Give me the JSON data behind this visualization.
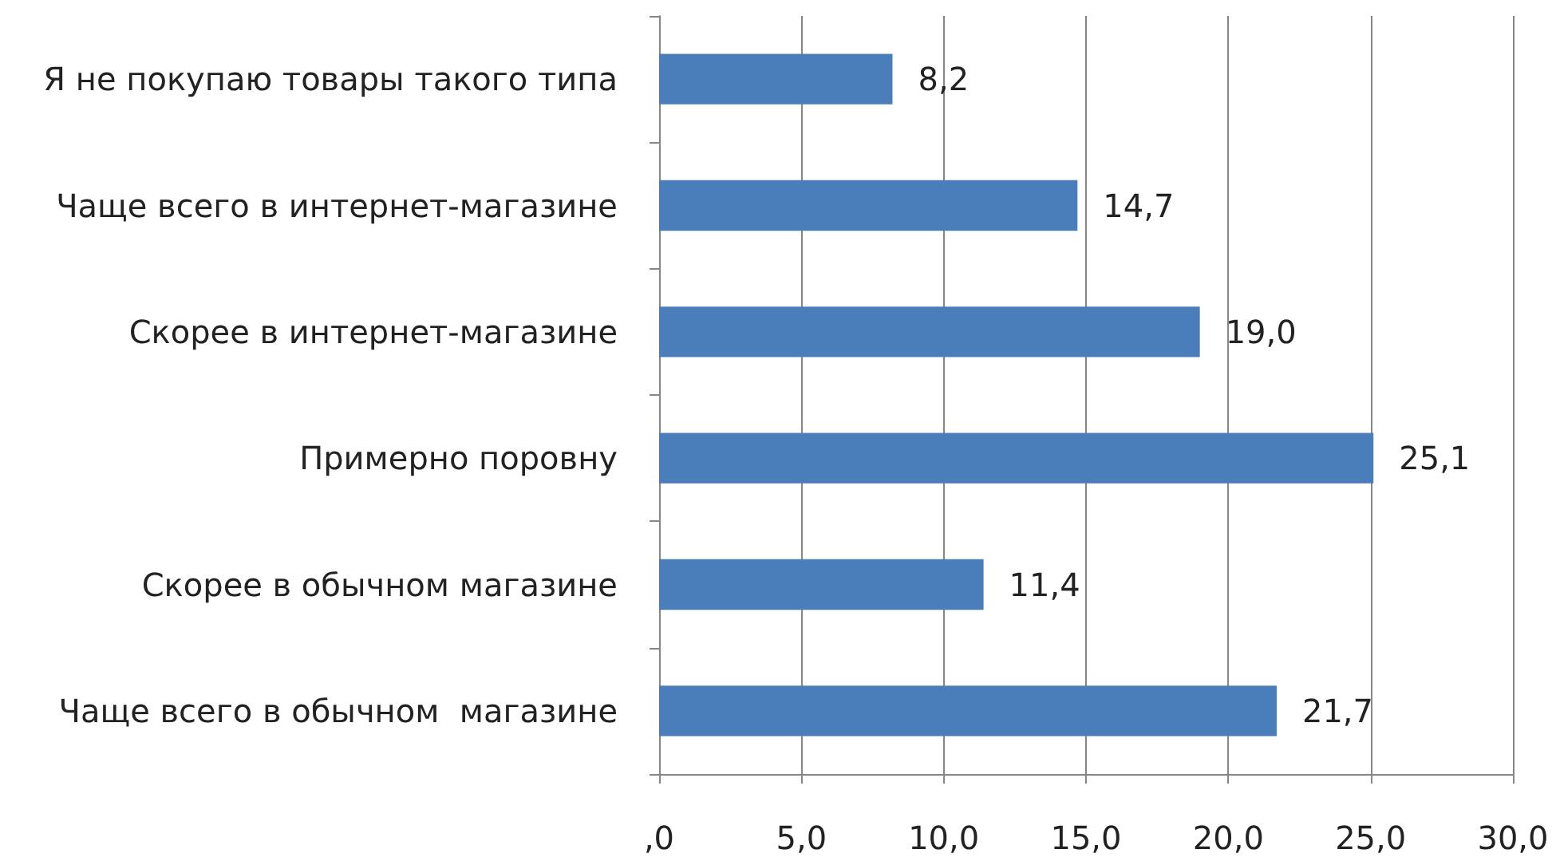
{
  "chart_data": {
    "type": "bar",
    "orientation": "horizontal",
    "categories": [
      "Я не покупаю товары такого типа",
      "Чаще всего в интернет-магазине",
      "Скорее в интернет-магазине",
      "Примерно поровну",
      "Скорее в обычном магазине",
      "Чаще всего в обычном  магазине"
    ],
    "values": [
      8.2,
      14.7,
      19.0,
      25.1,
      11.4,
      21.7
    ],
    "value_labels": [
      "8,2",
      "14,7",
      "19,0",
      "25,1",
      "11,4",
      "21,7"
    ],
    "color": "#4a7ebb",
    "xlim": [
      0,
      30
    ],
    "xticks": [
      {
        "value": 0,
        "label": ",0"
      },
      {
        "value": 5,
        "label": "5,0"
      },
      {
        "value": 10,
        "label": "10,0"
      },
      {
        "value": 15,
        "label": "15,0"
      },
      {
        "value": 20,
        "label": "20,0"
      },
      {
        "value": 25,
        "label": "25,0"
      },
      {
        "value": 30,
        "label": "30,0"
      }
    ],
    "grid": "x"
  }
}
